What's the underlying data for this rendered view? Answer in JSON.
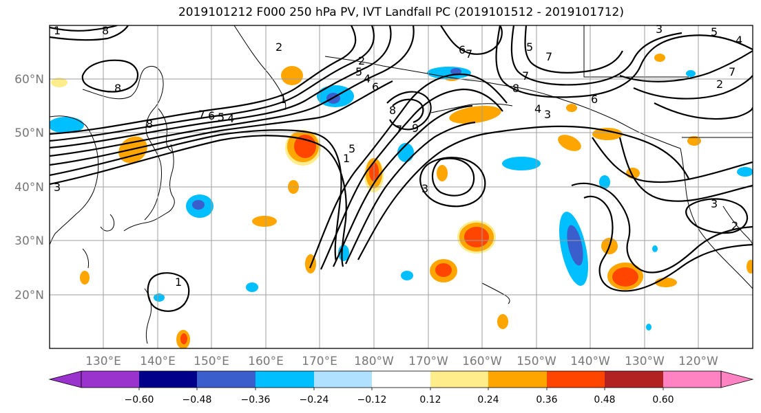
{
  "title": "2019101212 F000 250 hPa PV, IVT Landfall PC (2019101512 - 2019101712)",
  "map": {
    "projection": "cylindrical",
    "lon_range": [
      120,
      250
    ],
    "lat_range": [
      10,
      70
    ],
    "lat_ticks": [
      {
        "lat": 60,
        "label": "60°N"
      },
      {
        "lat": 50,
        "label": "50°N"
      },
      {
        "lat": 40,
        "label": "40°N"
      },
      {
        "lat": 30,
        "label": "30°N"
      },
      {
        "lat": 20,
        "label": "20°N"
      }
    ],
    "lon_ticks": [
      {
        "lon": 130,
        "label": "130°E"
      },
      {
        "lon": 140,
        "label": "140°E"
      },
      {
        "lon": 150,
        "label": "150°E"
      },
      {
        "lon": 160,
        "label": "160°E"
      },
      {
        "lon": 170,
        "label": "170°E"
      },
      {
        "lon": 180,
        "label": "180°W"
      },
      {
        "lon": 190,
        "label": "170°W"
      },
      {
        "lon": 200,
        "label": "160°W"
      },
      {
        "lon": 210,
        "label": "150°W"
      },
      {
        "lon": 220,
        "label": "140°W"
      },
      {
        "lon": 230,
        "label": "130°W"
      },
      {
        "lon": 240,
        "label": "120°W"
      }
    ],
    "gridlines": true,
    "grid_color": "#9e9e9e"
  },
  "colorbar": {
    "colors": [
      "#9a32cd",
      "#00008b",
      "#3a5fcd",
      "#00bfff",
      "#b0e2ff",
      "#ffffff",
      "#ffec8b",
      "#ffa500",
      "#ff4500",
      "#b22222",
      "#ff83c3"
    ],
    "tick_labels": [
      "−0.60",
      "−0.48",
      "−0.36",
      "−0.24",
      "−0.12",
      "0.12",
      "0.24",
      "0.36",
      "0.48",
      "0.60"
    ]
  },
  "contour_labels": [
    "8",
    "7",
    "6",
    "5",
    "4",
    "3",
    "2",
    "1",
    "1",
    "8",
    "7",
    "9",
    "5",
    "3",
    "2",
    "6",
    "7",
    "5",
    "4",
    "3",
    "1",
    "3",
    "2",
    "8",
    "8",
    "7",
    "6",
    "5",
    "4",
    "8",
    "3",
    "6",
    "2",
    "5",
    "4",
    "7",
    "7",
    "1"
  ]
}
